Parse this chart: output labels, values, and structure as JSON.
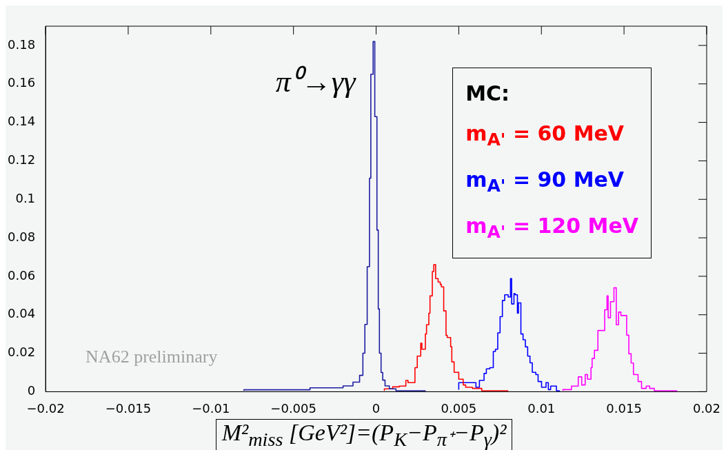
{
  "chart_data": {
    "type": "step",
    "xlabel": "M²$_{miss}$ [GeV²]=(P$_{K}$−P$_{π⁺}$−P$_{γ}$)²",
    "legend_title": "MC:",
    "legend": "top right",
    "grid": false,
    "marker": "none",
    "xlim": [
      -0.02,
      0.02
    ],
    "xticks": [
      -0.02,
      -0.015,
      -0.01,
      -0.005,
      0,
      0.005,
      0.01,
      0.015,
      0.02
    ],
    "ylim": [
      0,
      0.19
    ],
    "yticks": [
      0,
      0.02,
      0.04,
      0.06,
      0.08,
      0.1,
      0.12,
      0.14,
      0.16,
      0.18
    ],
    "annotations": [
      {
        "text": "π⁰→γγ",
        "x": 0,
        "y": 0.16
      },
      "NA62 preliminary"
    ],
    "series": [
      {
        "color": "#1c1ca0",
        "x": [
          -0.008,
          -0.004,
          -0.002,
          -0.0014,
          -0.001,
          -0.0008,
          -0.00068,
          -0.00054,
          -0.0004,
          -0.00032,
          -0.00018,
          -8e-05,
          5e-05,
          0.00013,
          0.0002,
          0.0003,
          0.0004,
          0.00054,
          0.0008,
          0.0012,
          0.002,
          0.003
        ],
        "values": [
          0.0005,
          0.001,
          0.002,
          0.003,
          0.005,
          0.0085,
          0.02,
          0.035,
          0.065,
          0.111,
          0.165,
          0.182,
          0.143,
          0.084,
          0.043,
          0.02,
          0.01,
          0.006,
          0.003,
          0.0015,
          0.0005,
          0.0005
        ]
      },
      {
        "name": "m$_{A'}$ = 60 MeV",
        "color": "#ff0000",
        "x": [
          0.0005,
          0.001,
          0.0014,
          0.0018,
          0.00193,
          0.00235,
          0.00249,
          0.0027,
          0.00277,
          0.00298,
          0.00305,
          0.00319,
          0.00326,
          0.0034,
          0.00349,
          0.0036,
          0.00375,
          0.00388,
          0.00395,
          0.00409,
          0.00423,
          0.0043,
          0.00451,
          0.00458,
          0.00472,
          0.005,
          0.00527,
          0.00542,
          0.00583,
          0.00639,
          0.00667,
          0.008
        ],
        "values": [
          0.0005,
          0.0015,
          0.0025,
          0.0029,
          0.0059,
          0.0047,
          0.0125,
          0.0185,
          0.0252,
          0.0221,
          0.03,
          0.0348,
          0.0408,
          0.0498,
          0.0625,
          0.066,
          0.0588,
          0.057,
          0.0558,
          0.0545,
          0.042,
          0.0293,
          0.0282,
          0.0234,
          0.0155,
          0.0101,
          0.0065,
          0.0035,
          0.0023,
          0.0017,
          0.0005,
          0.0005
        ]
      },
      {
        "name": "m$_{A'}$ = 90 MeV",
        "color": "#0000ff",
        "x": [
          0.005,
          0.00604,
          0.00625,
          0.00653,
          0.00667,
          0.00688,
          0.00709,
          0.00722,
          0.00736,
          0.0075,
          0.00764,
          0.00778,
          0.00799,
          0.00813,
          0.0082,
          0.00834,
          0.00841,
          0.00855,
          0.00861,
          0.00876,
          0.00889,
          0.00903,
          0.00917,
          0.00931,
          0.00945,
          0.00966,
          0.0098,
          0.01001,
          0.01028,
          0.01042,
          0.01056,
          0.01091,
          0.01112
        ],
        "values": [
          0.001,
          0.0047,
          0.0023,
          0.0059,
          0.0095,
          0.0119,
          0.0125,
          0.0209,
          0.0221,
          0.0306,
          0.039,
          0.0474,
          0.0504,
          0.0492,
          0.0588,
          0.0456,
          0.051,
          0.0504,
          0.0408,
          0.0462,
          0.03,
          0.027,
          0.0233,
          0.0185,
          0.015,
          0.0101,
          0.0089,
          0.0053,
          0.0023,
          0.0047,
          0.0011,
          0.0029,
          0.0005
        ]
      },
      {
        "name": "m$_{A'}$ = 120 MeV",
        "color": "#ff00ff",
        "x": [
          0.0113,
          0.01182,
          0.01223,
          0.01244,
          0.01265,
          0.01279,
          0.013,
          0.01307,
          0.01321,
          0.01342,
          0.01356,
          0.01383,
          0.01397,
          0.01404,
          0.01418,
          0.01439,
          0.01453,
          0.01467,
          0.01481,
          0.01516,
          0.01529,
          0.01543,
          0.01557,
          0.01585,
          0.01606,
          0.01634,
          0.01655,
          0.01683,
          0.01711,
          0.01752,
          0.01794,
          0.01822
        ],
        "values": [
          0.0005,
          0.0011,
          0.0029,
          0.0077,
          0.0035,
          0.0089,
          0.0065,
          0.0125,
          0.0173,
          0.0215,
          0.0318,
          0.0318,
          0.0426,
          0.0498,
          0.0384,
          0.0468,
          0.054,
          0.0348,
          0.0414,
          0.0396,
          0.0294,
          0.0197,
          0.0149,
          0.0089,
          0.0053,
          0.0017,
          0.0029,
          0.0017,
          0.0005,
          0.0005,
          0.0005,
          0.0005
        ]
      }
    ]
  }
}
